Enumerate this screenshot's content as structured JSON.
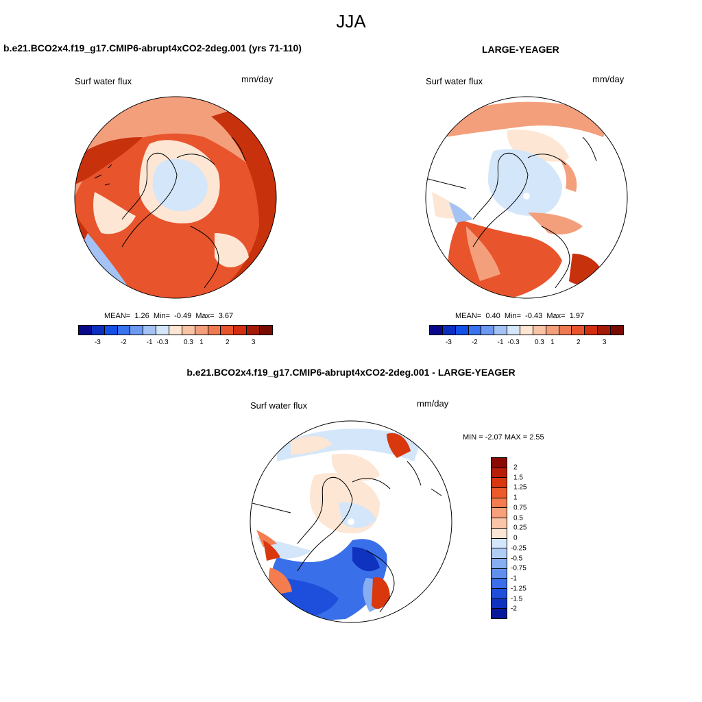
{
  "title": "JJA",
  "panel1": {
    "case_title": "b.e21.BCO2x4.f19_g17.CMIP6-abrupt4xCO2-2deg.001 (yrs 71-110)",
    "variable": "Surf water flux",
    "units": "mm/day",
    "stats": {
      "mean_label": "MEAN=",
      "mean": "1.26",
      "min_label": "Min=",
      "min": "-0.49",
      "max_label": "Max=",
      "max": "3.67"
    }
  },
  "panel2": {
    "case_title": "LARGE-YEAGER",
    "variable": "Surf water flux",
    "units": "mm/day",
    "stats": {
      "mean_label": "MEAN=",
      "mean": "0.40",
      "min_label": "Min=",
      "min": "-0.43",
      "max_label": "Max=",
      "max": "1.97"
    }
  },
  "panel3": {
    "case_title": "b.e21.BCO2x4.f19_g17.CMIP6-abrupt4xCO2-2deg.001 - LARGE-YEAGER",
    "variable": "Surf water flux",
    "units": "mm/day",
    "minmax": "MIN =  -2.07 MAX =   2.55"
  },
  "colorbar_abs": {
    "colors": [
      "#08088a",
      "#0c2fbf",
      "#1550e6",
      "#3a73ef",
      "#6c99f2",
      "#a5c2f4",
      "#d4e6f9",
      "#fde6d4",
      "#f9c3a5",
      "#f49f7c",
      "#ef7a52",
      "#e8542c",
      "#d12e12",
      "#a41a08",
      "#7a0b03"
    ],
    "ticks": [
      "-3",
      "-2",
      "-1",
      "-0.3",
      "0.3",
      "1",
      "2",
      "3"
    ]
  },
  "colorbar_diff": {
    "colors": [
      "#8a0b03",
      "#b81d07",
      "#d9380f",
      "#ec5a2b",
      "#f37d4f",
      "#f7a07a",
      "#fbc6a8",
      "#fde6d4",
      "#d4e6f9",
      "#b0cdf5",
      "#87aef2",
      "#6090ee",
      "#3a6fea",
      "#1e4fdc",
      "#0f33bf",
      "#08189a"
    ],
    "ticks": [
      "2",
      "1.5",
      "1.25",
      "1",
      "0.75",
      "0.5",
      "0.25",
      "0",
      "-0.25",
      "-0.5",
      "-0.75",
      "-1",
      "-1.25",
      "-1.5",
      "-2"
    ]
  },
  "map_colors": {
    "ocean": "#ffffff",
    "strong_red": "#c7310c",
    "mid_red": "#e8542c",
    "light_red": "#f49f7c",
    "pale_red": "#fde6d4",
    "pale_blue": "#d4e6f9",
    "light_blue": "#a5c2f4",
    "blue": "#3a6fea",
    "dark_blue": "#0f33bf"
  }
}
